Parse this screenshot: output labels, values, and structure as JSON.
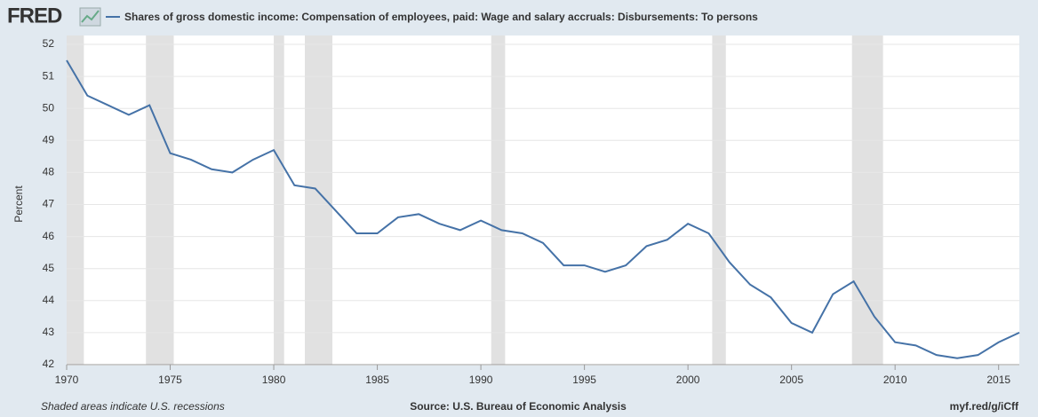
{
  "brand": "FRED",
  "chart_data": {
    "type": "line",
    "title": "Shares of gross domestic income: Compensation of employees, paid: Wage and salary accruals: Disbursements: To persons",
    "y_label": "Percent",
    "x": [
      1970,
      1971,
      1972,
      1973,
      1974,
      1975,
      1976,
      1977,
      1978,
      1979,
      1980,
      1981,
      1982,
      1983,
      1984,
      1985,
      1986,
      1987,
      1988,
      1989,
      1990,
      1991,
      1992,
      1993,
      1994,
      1995,
      1996,
      1997,
      1998,
      1999,
      2000,
      2001,
      2002,
      2003,
      2004,
      2005,
      2006,
      2007,
      2008,
      2009,
      2010,
      2011,
      2012,
      2013,
      2014,
      2015,
      2016
    ],
    "series": [
      {
        "name": "Shares of gross domestic income: Compensation of employees, paid: Wage and salary accruals: Disbursements: To persons",
        "color": "#4572a7",
        "values": [
          51.5,
          50.4,
          50.1,
          49.8,
          50.1,
          48.6,
          48.4,
          48.1,
          48.0,
          48.4,
          48.7,
          47.6,
          47.5,
          46.8,
          46.1,
          46.1,
          46.6,
          46.7,
          46.4,
          46.2,
          46.5,
          46.2,
          46.1,
          45.8,
          45.1,
          45.1,
          44.9,
          45.1,
          45.7,
          45.9,
          46.4,
          46.1,
          45.2,
          44.5,
          44.1,
          43.3,
          43.0,
          44.2,
          44.6,
          43.5,
          42.7,
          42.6,
          42.3,
          42.2,
          42.3,
          42.7,
          43.0
        ]
      }
    ],
    "recessions": [
      [
        1970.0,
        1970.83
      ],
      [
        1973.83,
        1975.17
      ],
      [
        1980.0,
        1980.5
      ],
      [
        1981.5,
        1982.83
      ],
      [
        1990.5,
        1991.17
      ],
      [
        2001.17,
        2001.83
      ],
      [
        2007.92,
        2009.42
      ]
    ],
    "recession_color": "#e1e1e1",
    "xlim": [
      1970,
      2016
    ],
    "ylim": [
      42,
      52
    ],
    "xticks": [
      1970,
      1975,
      1980,
      1985,
      1990,
      1995,
      2000,
      2005,
      2010,
      2015
    ],
    "yticks": [
      42,
      43,
      44,
      45,
      46,
      47,
      48,
      49,
      50,
      51,
      52
    ],
    "grid": true,
    "footer_left": "Shaded areas indicate U.S. recessions",
    "footer_center": "Source: U.S. Bureau of Economic Analysis",
    "footer_right": "myf.red/g/iCff"
  }
}
